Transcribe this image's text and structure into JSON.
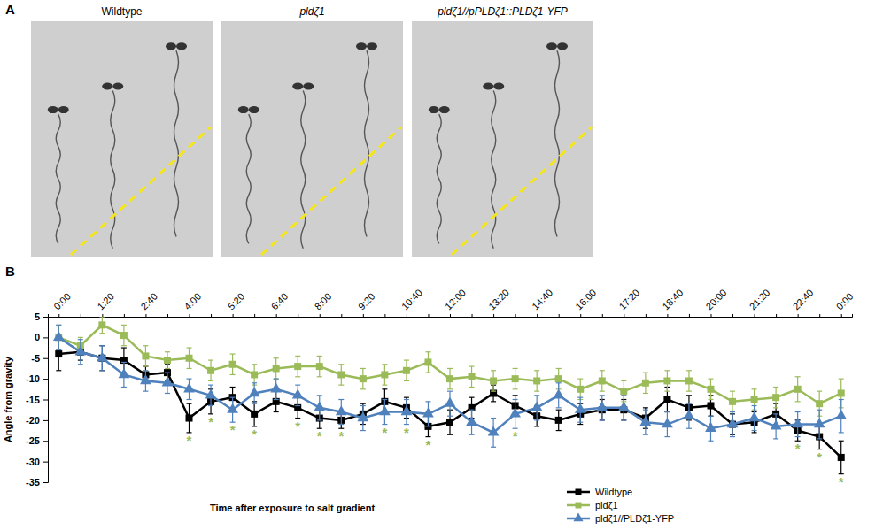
{
  "panel_a": {
    "letter": "A",
    "image_labels": [
      "Wildtype",
      "pldζ1",
      "pldζ1//pPLDζ1::PLDζ1-YFP"
    ]
  },
  "panel_b": {
    "letter": "B"
  },
  "chart_data": {
    "type": "line",
    "x_label": "Time after exposure to salt gradient",
    "y_label": "Angle from gravity",
    "categories": [
      "0:00",
      null,
      "1:20",
      null,
      "2:40",
      null,
      "4:00",
      null,
      "5:20",
      null,
      "6:40",
      null,
      "8:00",
      null,
      "9:20",
      null,
      "10:40",
      null,
      "12:00",
      null,
      "13:20",
      null,
      "14:40",
      null,
      "16:00",
      null,
      "17:20",
      null,
      "18:40",
      null,
      "20:00",
      null,
      "21:20",
      null,
      "22:40",
      null,
      "0:00"
    ],
    "ylim": [
      -35,
      5
    ],
    "yticks": [
      -35,
      -30,
      -25,
      -20,
      -15,
      -10,
      -5,
      0,
      5
    ],
    "grid": false,
    "legend": "bottom",
    "series": [
      {
        "name": "Wildtype",
        "color": "#000000",
        "marker": "square",
        "values": [
          -4,
          -3.5,
          -5,
          -5.5,
          -9,
          -8.5,
          -19.5,
          -15.5,
          -14.5,
          -18.5,
          -15.5,
          -17,
          -19.5,
          -20,
          -18.5,
          -15.5,
          -17,
          -21.5,
          -20.5,
          -17,
          -13.5,
          -16.5,
          -19,
          -20,
          -18.5,
          -17.5,
          -17.5,
          -19.5,
          -15,
          -17,
          -16.5,
          -21,
          -20.5,
          -18.5,
          -22.5,
          -24,
          -29
        ],
        "errors": [
          4,
          2,
          3,
          3,
          2,
          2,
          3.5,
          3,
          2.5,
          3,
          2.5,
          2.5,
          2.5,
          2,
          2.5,
          3,
          2.5,
          2.5,
          3,
          2.5,
          2,
          2.5,
          2.5,
          2.5,
          2.5,
          2.5,
          2.5,
          2.5,
          3,
          3,
          2.5,
          2.5,
          2.5,
          2.5,
          2.5,
          3,
          4
        ]
      },
      {
        "name": "pldζ1",
        "color": "#9bbb59",
        "marker": "square",
        "values": [
          0,
          -2,
          3,
          0.5,
          -4.5,
          -5.5,
          -5,
          -8,
          -6.5,
          -9,
          -7.5,
          -7,
          -7,
          -9,
          -10,
          -9,
          -8,
          -6,
          -10,
          -9.5,
          -10.5,
          -10,
          -10.5,
          -10,
          -12.5,
          -10.5,
          -13,
          -11,
          -10.5,
          -10.5,
          -12.5,
          -15.5,
          -15,
          -14.5,
          -12.5,
          -16,
          -13.5
        ],
        "errors": [
          3,
          2,
          2,
          2.5,
          2.5,
          2,
          2.5,
          2.5,
          2.5,
          2.5,
          2.5,
          2.5,
          2.5,
          2.5,
          2.5,
          2.5,
          2.5,
          2.5,
          2.5,
          2.5,
          2.5,
          2.5,
          2.5,
          2.5,
          2.5,
          2.5,
          2.5,
          2.5,
          2.5,
          2.5,
          2.5,
          2.5,
          2.5,
          2.5,
          3,
          3,
          3.5
        ]
      },
      {
        "name": "pldζ1//PLDζ1-YFP",
        "color": "#4f81bd",
        "marker": "triangle",
        "values": [
          0,
          -3.5,
          -5,
          -9,
          -10.5,
          -11,
          -12.5,
          -14,
          -17.5,
          -13.5,
          -12.5,
          -14,
          -17,
          -18,
          -19.5,
          -18,
          -18,
          -18.5,
          -16,
          -20.5,
          -23,
          -18.5,
          -17,
          -14,
          -17.5,
          -17,
          -17,
          -20.5,
          -21,
          -19,
          -22,
          -21,
          -19.5,
          -21.5,
          -21,
          -21,
          -19
        ],
        "errors": [
          3,
          3,
          3,
          3,
          2.5,
          2.5,
          2.5,
          2.5,
          3,
          2.5,
          2.5,
          2.5,
          3,
          3,
          3,
          3,
          3,
          3,
          3,
          3,
          3.5,
          3.5,
          3,
          3,
          3,
          3,
          3,
          3,
          3,
          3,
          3,
          3,
          3,
          3,
          3,
          3.5,
          4
        ]
      }
    ],
    "annotations": [
      {
        "index": 6,
        "text": "*"
      },
      {
        "index": 7,
        "text": "*"
      },
      {
        "index": 8,
        "text": "*"
      },
      {
        "index": 9,
        "text": "*"
      },
      {
        "index": 11,
        "text": "*"
      },
      {
        "index": 12,
        "text": "*"
      },
      {
        "index": 13,
        "text": "*"
      },
      {
        "index": 15,
        "text": "*"
      },
      {
        "index": 16,
        "text": "*"
      },
      {
        "index": 17,
        "text": "*"
      },
      {
        "index": 21,
        "text": "*"
      },
      {
        "index": 34,
        "text": "*"
      },
      {
        "index": 35,
        "text": "*"
      },
      {
        "index": 36,
        "text": "*"
      }
    ]
  }
}
